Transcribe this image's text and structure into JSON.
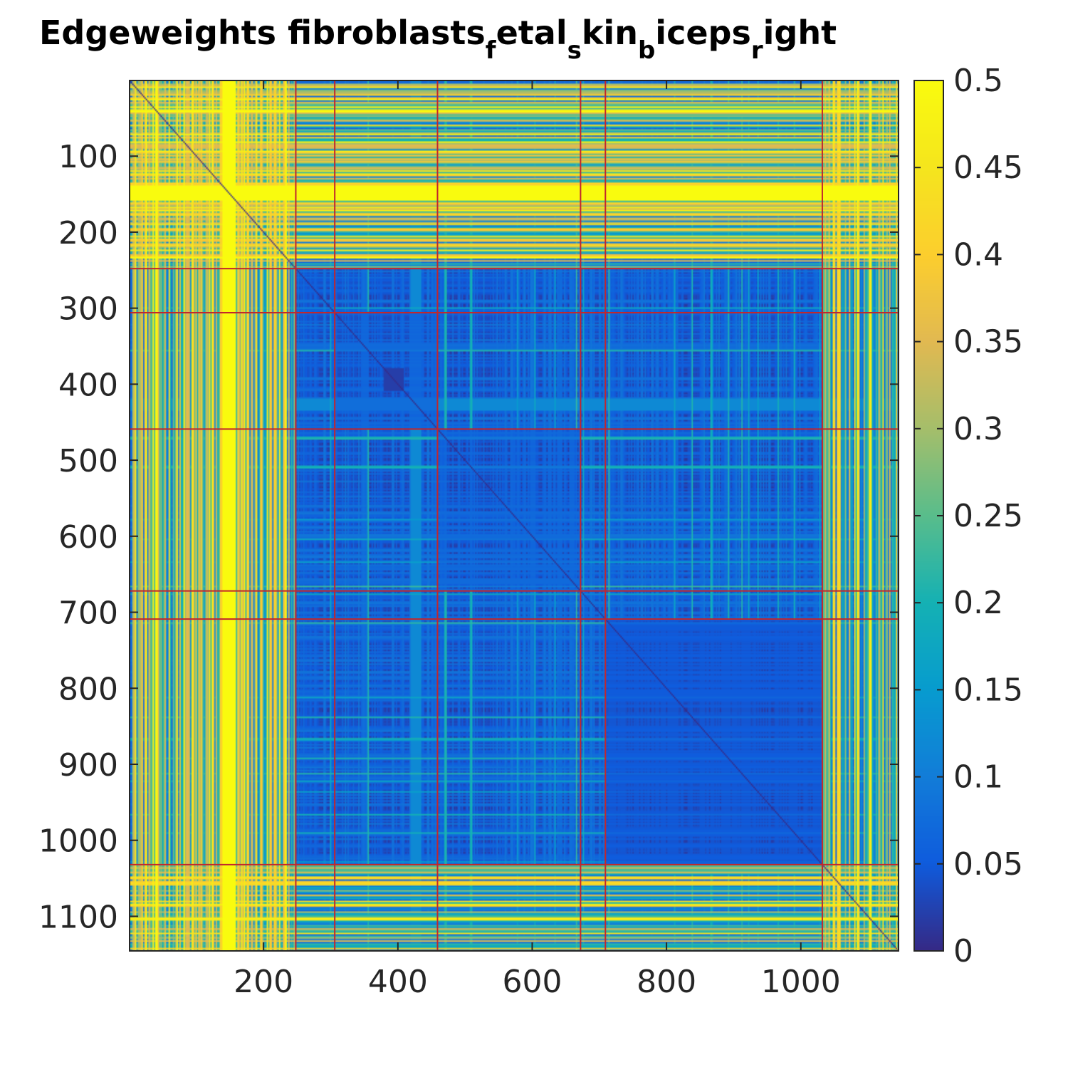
{
  "chart_data": {
    "type": "heatmap",
    "title": {
      "parts": [
        {
          "text": "Edgeweights fibroblasts",
          "sub": false
        },
        {
          "text": "f",
          "sub": true
        },
        {
          "text": "etal",
          "sub": false
        },
        {
          "text": "s",
          "sub": true
        },
        {
          "text": "kin",
          "sub": false
        },
        {
          "text": "b",
          "sub": true
        },
        {
          "text": "iceps",
          "sub": false
        },
        {
          "text": "r",
          "sub": true
        },
        {
          "text": "ight",
          "sub": false
        }
      ]
    },
    "matrix_size": 1145,
    "x_range": [
      1,
      1145
    ],
    "y_range": [
      1,
      1145
    ],
    "y_reversed": true,
    "x_ticks": [
      200,
      400,
      600,
      800,
      1000
    ],
    "y_ticks": [
      100,
      200,
      300,
      400,
      500,
      600,
      700,
      800,
      900,
      1000,
      1100
    ],
    "colorbar": {
      "min": 0,
      "max": 0.5,
      "colormap": "parula",
      "ticks": [
        "0",
        "0.05",
        "0.1",
        "0.15",
        "0.2",
        "0.25",
        "0.3",
        "0.35",
        "0.4",
        "0.45",
        "0.5"
      ]
    },
    "cluster_boundaries": [
      248,
      306,
      459,
      672,
      709,
      1032
    ],
    "boundary_color": "#c1272d",
    "clusters": [
      {
        "range": [
          1,
          248
        ],
        "mean_weight": 0.3
      },
      {
        "range": [
          249,
          306
        ],
        "mean_weight": 0.09
      },
      {
        "range": [
          307,
          459
        ],
        "mean_weight": 0.06
      },
      {
        "range": [
          460,
          672
        ],
        "mean_weight": 0.06
      },
      {
        "range": [
          673,
          709
        ],
        "mean_weight": 0.09
      },
      {
        "range": [
          710,
          1032
        ],
        "mean_weight": 0.04
      },
      {
        "range": [
          1033,
          1145
        ],
        "mean_weight": 0.3
      }
    ],
    "high_band": {
      "range": [
        140,
        160
      ],
      "value": 0.5
    },
    "medium_band": {
      "range": [
        420,
        435
      ],
      "value": 0.12
    },
    "dark_block": {
      "range": [
        380,
        410
      ],
      "value": 0.02
    },
    "grid": false
  }
}
